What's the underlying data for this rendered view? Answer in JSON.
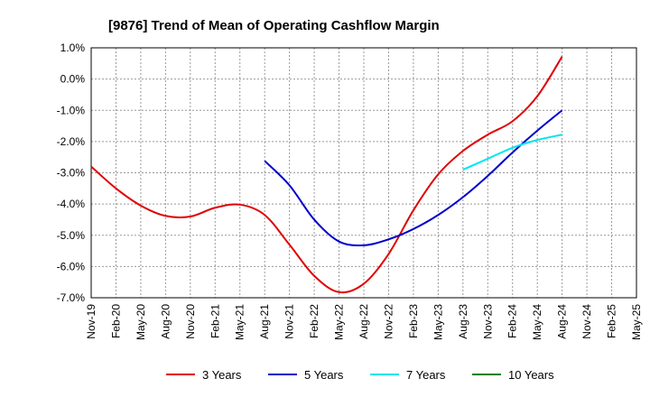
{
  "chart_data": {
    "type": "line",
    "title": "[9876]  Trend of Mean of Operating Cashflow Margin",
    "xlabel": "",
    "ylabel": "",
    "ylim": [
      -7.0,
      1.0
    ],
    "y_ticks": [
      "1.0%",
      "0.0%",
      "-1.0%",
      "-2.0%",
      "-3.0%",
      "-4.0%",
      "-5.0%",
      "-6.0%",
      "-7.0%"
    ],
    "y_tick_values": [
      1,
      0,
      -1,
      -2,
      -3,
      -4,
      -5,
      -6,
      -7
    ],
    "x_ticks": [
      "Nov-19",
      "Feb-20",
      "May-20",
      "Aug-20",
      "Nov-20",
      "Feb-21",
      "May-21",
      "Aug-21",
      "Nov-21",
      "Feb-22",
      "May-22",
      "Aug-22",
      "Nov-22",
      "Feb-23",
      "May-23",
      "Aug-23",
      "Nov-23",
      "Feb-24",
      "May-24",
      "Aug-24",
      "Nov-24",
      "Feb-25",
      "May-25"
    ],
    "grid": true,
    "legend_position": "bottom",
    "series": [
      {
        "name": "3 Years",
        "color": "#e00000",
        "points": [
          [
            0,
            -2.8
          ],
          [
            1,
            -3.5
          ],
          [
            2,
            -4.05
          ],
          [
            3,
            -4.38
          ],
          [
            4,
            -4.4
          ],
          [
            5,
            -4.12
          ],
          [
            6,
            -4.02
          ],
          [
            7,
            -4.35
          ],
          [
            8,
            -5.3
          ],
          [
            9,
            -6.3
          ],
          [
            10,
            -6.82
          ],
          [
            11,
            -6.55
          ],
          [
            12,
            -5.6
          ],
          [
            13,
            -4.2
          ],
          [
            14,
            -3.05
          ],
          [
            15,
            -2.3
          ],
          [
            16,
            -1.78
          ],
          [
            17,
            -1.35
          ],
          [
            18,
            -0.55
          ],
          [
            19,
            0.72
          ]
        ]
      },
      {
        "name": "5 Years",
        "color": "#0000cc",
        "points": [
          [
            7,
            -2.62
          ],
          [
            8,
            -3.4
          ],
          [
            9,
            -4.5
          ],
          [
            10,
            -5.2
          ],
          [
            11,
            -5.32
          ],
          [
            12,
            -5.13
          ],
          [
            13,
            -4.8
          ],
          [
            14,
            -4.35
          ],
          [
            15,
            -3.78
          ],
          [
            16,
            -3.1
          ],
          [
            17,
            -2.35
          ],
          [
            18,
            -1.65
          ],
          [
            19,
            -1.0
          ]
        ]
      },
      {
        "name": "7 Years",
        "color": "#00e5ee",
        "points": [
          [
            15,
            -2.9
          ],
          [
            16,
            -2.55
          ],
          [
            17,
            -2.2
          ],
          [
            18,
            -1.95
          ],
          [
            19,
            -1.78
          ]
        ]
      },
      {
        "name": "10 Years",
        "color": "#008000",
        "points": []
      }
    ]
  }
}
